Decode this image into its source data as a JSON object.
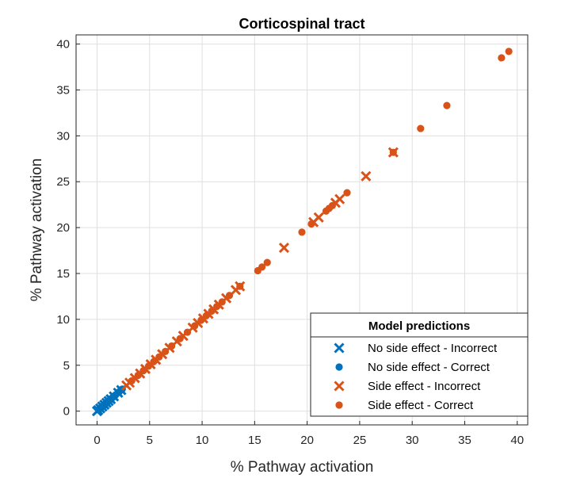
{
  "chart_data": {
    "type": "scatter",
    "title": "Corticospinal tract",
    "xlabel": "% Pathway activation",
    "ylabel": "% Pathway activation",
    "xlim": [
      -2,
      41
    ],
    "ylim": [
      -1.5,
      41
    ],
    "xticks": [
      0,
      5,
      10,
      15,
      20,
      25,
      30,
      35,
      40
    ],
    "yticks": [
      0,
      5,
      10,
      15,
      20,
      25,
      30,
      35,
      40
    ],
    "grid": true,
    "legend": {
      "title": "Model predictions",
      "location": "lower-right"
    },
    "series": [
      {
        "name": "No side effect - Incorrect",
        "marker": "x",
        "color": "#0072BD",
        "x": [
          0.0,
          0.1,
          0.3,
          0.5,
          0.7,
          0.9,
          1.1,
          1.3,
          1.6,
          2.0,
          2.3
        ],
        "y": [
          0.0,
          0.1,
          0.3,
          0.5,
          0.7,
          0.9,
          1.1,
          1.3,
          1.6,
          2.0,
          2.3
        ]
      },
      {
        "name": "No side effect - Correct",
        "marker": "o",
        "color": "#0072BD",
        "x": [
          0.2,
          0.4,
          0.6,
          0.8,
          1.0,
          1.2,
          1.4,
          1.5,
          1.7,
          1.8,
          2.1,
          2.4
        ],
        "y": [
          0.2,
          0.4,
          0.6,
          0.8,
          1.0,
          1.2,
          1.4,
          1.5,
          1.7,
          1.8,
          2.1,
          2.4
        ]
      },
      {
        "name": "Side effect - Incorrect",
        "marker": "x",
        "color": "#D95319",
        "x": [
          2.8,
          3.1,
          3.6,
          4.1,
          4.6,
          5.1,
          5.6,
          6.2,
          6.9,
          7.6,
          8.2,
          9.1,
          9.6,
          10.1,
          10.6,
          11.1,
          11.6,
          12.3,
          13.2,
          13.6,
          17.8,
          20.6,
          21.1,
          22.7,
          23.1,
          25.6,
          28.2
        ],
        "y": [
          2.8,
          3.1,
          3.6,
          4.1,
          4.6,
          5.1,
          5.6,
          6.2,
          6.9,
          7.6,
          8.2,
          9.1,
          9.6,
          10.1,
          10.6,
          11.1,
          11.6,
          12.3,
          13.2,
          13.6,
          17.8,
          20.6,
          21.1,
          22.7,
          23.1,
          25.6,
          28.2
        ]
      },
      {
        "name": "Side effect - Correct",
        "marker": "o",
        "color": "#D95319",
        "x": [
          3.3,
          3.9,
          4.4,
          4.9,
          5.4,
          5.9,
          6.5,
          7.1,
          7.9,
          8.6,
          9.3,
          9.9,
          10.4,
          10.9,
          11.4,
          11.9,
          12.6,
          13.6,
          15.3,
          15.7,
          16.2,
          19.5,
          20.4,
          21.8,
          22.1,
          22.4,
          23.8,
          28.2,
          30.8,
          33.3,
          38.5,
          39.2
        ],
        "y": [
          3.3,
          3.9,
          4.4,
          4.9,
          5.4,
          5.9,
          6.5,
          7.1,
          7.9,
          8.6,
          9.3,
          9.9,
          10.4,
          10.9,
          11.4,
          11.9,
          12.6,
          13.6,
          15.3,
          15.7,
          16.2,
          19.5,
          20.4,
          21.8,
          22.1,
          22.4,
          23.8,
          28.2,
          30.8,
          33.3,
          38.5,
          39.2
        ]
      }
    ]
  }
}
